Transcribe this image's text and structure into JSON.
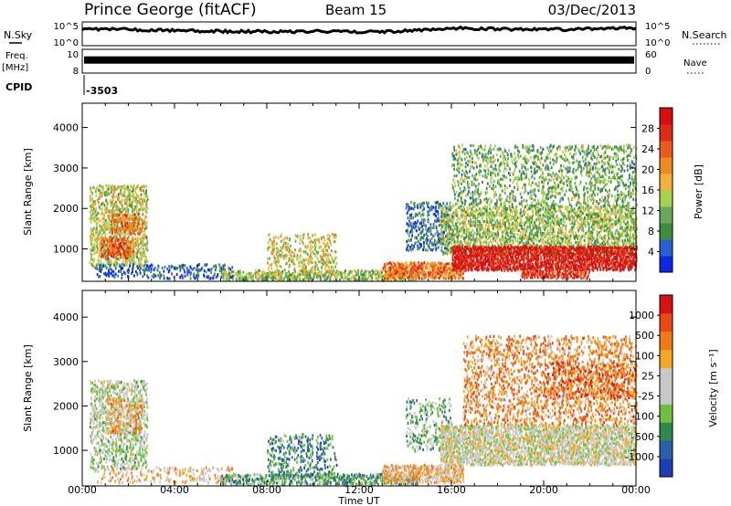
{
  "header": {
    "station": "Prince George (fitACF)",
    "beam": "Beam 15",
    "date": "03/Dec/2013"
  },
  "chart_data": [
    {
      "type": "line",
      "panel": "noise",
      "left_label": "N.Sky",
      "right_label": "N.Search",
      "left_ticks": [
        "10^5",
        "10^0"
      ],
      "right_ticks": [
        "10^5",
        "10^0"
      ],
      "x_hours": [
        0,
        1,
        2,
        3,
        4,
        5,
        6,
        7,
        8,
        9,
        10,
        11,
        12,
        13,
        14,
        15,
        16,
        17,
        18,
        19,
        20,
        21,
        22,
        23,
        24
      ],
      "n_sky_level": [
        0.72,
        0.7,
        0.68,
        0.66,
        0.64,
        0.62,
        0.6,
        0.6,
        0.6,
        0.6,
        0.61,
        0.6,
        0.58,
        0.6,
        0.62,
        0.68,
        0.74,
        0.72,
        0.7,
        0.7,
        0.68,
        0.68,
        0.7,
        0.72,
        0.74
      ]
    },
    {
      "type": "line",
      "panel": "frequency",
      "left_label": "Freq.",
      "left_unit": "[MHz]",
      "left_ticks": [
        "10",
        "8"
      ],
      "right_label": "Nave",
      "right_ticks": [
        "60",
        "0"
      ],
      "cpid_label": "CPID",
      "cpid_value": "-3503",
      "frequency_level": 0.55
    },
    {
      "type": "heatmap",
      "panel": "power",
      "ylabel": "Slant Range [km]",
      "yticks": [
        1000,
        2000,
        3000,
        4000
      ],
      "ylim": [
        200,
        4600
      ],
      "colorbar_label": "Power [dB]",
      "colorbar_ticks": [
        4,
        8,
        12,
        16,
        20,
        24,
        28
      ],
      "colorbar_colors": [
        "#0a28e6",
        "#2a5fd2",
        "#3f8c3a",
        "#6aa85e",
        "#a7d24d",
        "#f2b13a",
        "#f08a1e",
        "#ea5a1a",
        "#e02a14",
        "#d80f0f"
      ],
      "regions": [
        {
          "t0": 0.3,
          "t1": 2.8,
          "r0": 600,
          "r1": 2600,
          "density": 0.55,
          "level": 0.45
        },
        {
          "t0": 0.8,
          "t1": 2.2,
          "r0": 800,
          "r1": 1300,
          "density": 0.6,
          "level": 0.75
        },
        {
          "t0": 1.2,
          "t1": 2.6,
          "r0": 1400,
          "r1": 1900,
          "density": 0.5,
          "level": 0.7
        },
        {
          "t0": 0.5,
          "t1": 6.5,
          "r0": 300,
          "r1": 650,
          "density": 0.35,
          "level": 0.15
        },
        {
          "t0": 6.0,
          "t1": 14.5,
          "r0": 250,
          "r1": 500,
          "density": 0.6,
          "level": 0.4
        },
        {
          "t0": 8.0,
          "t1": 11.0,
          "r0": 400,
          "r1": 1400,
          "density": 0.35,
          "level": 0.5
        },
        {
          "t0": 13.0,
          "t1": 16.5,
          "r0": 300,
          "r1": 700,
          "density": 0.8,
          "level": 0.7
        },
        {
          "t0": 14.0,
          "t1": 16.0,
          "r0": 1000,
          "r1": 2200,
          "density": 0.35,
          "level": 0.2
        },
        {
          "t0": 15.5,
          "t1": 24.0,
          "r0": 900,
          "r1": 2100,
          "density": 0.55,
          "level": 0.4
        },
        {
          "t0": 16.0,
          "t1": 24.0,
          "r0": 500,
          "r1": 1100,
          "density": 0.85,
          "level": 0.95
        },
        {
          "t0": 16.0,
          "t1": 24.0,
          "r0": 2100,
          "r1": 3600,
          "density": 0.3,
          "level": 0.35
        },
        {
          "t0": 19.0,
          "t1": 22.0,
          "r0": 300,
          "r1": 500,
          "density": 0.8,
          "level": 0.85
        }
      ]
    },
    {
      "type": "heatmap",
      "panel": "velocity",
      "ylabel": "Slant Range [km]",
      "yticks": [
        1000,
        2000,
        3000,
        4000
      ],
      "ylim": [
        200,
        4600
      ],
      "colorbar_label": "Velocity [m s⁻¹]",
      "colorbar_ticks": [
        1000,
        500,
        100,
        25,
        -25,
        -100,
        -500,
        -1000
      ],
      "colorbar_colors": [
        "#1e3cb4",
        "#2a5faa",
        "#2e8a4a",
        "#6fbf3c",
        "#c8c8c8",
        "#c8c8c8",
        "#f5a623",
        "#f07a1a",
        "#e84a14",
        "#d81212"
      ],
      "regions": [
        {
          "t0": 0.3,
          "t1": 2.8,
          "r0": 600,
          "r1": 2600,
          "density": 0.5,
          "level": 0.45
        },
        {
          "t0": 1.0,
          "t1": 2.6,
          "r0": 1400,
          "r1": 2200,
          "density": 0.4,
          "level": 0.65
        },
        {
          "t0": 0.5,
          "t1": 6.5,
          "r0": 300,
          "r1": 650,
          "density": 0.3,
          "level": 0.6
        },
        {
          "t0": 6.0,
          "t1": 14.5,
          "r0": 250,
          "r1": 500,
          "density": 0.6,
          "level": 0.3
        },
        {
          "t0": 8.0,
          "t1": 11.0,
          "r0": 400,
          "r1": 1400,
          "density": 0.3,
          "level": 0.25
        },
        {
          "t0": 13.0,
          "t1": 16.5,
          "r0": 300,
          "r1": 700,
          "density": 0.8,
          "level": 0.62
        },
        {
          "t0": 14.0,
          "t1": 16.0,
          "r0": 1000,
          "r1": 2200,
          "density": 0.3,
          "level": 0.35
        },
        {
          "t0": 15.5,
          "t1": 24.0,
          "r0": 700,
          "r1": 1600,
          "density": 0.8,
          "level": 0.5
        },
        {
          "t0": 16.5,
          "t1": 24.0,
          "r0": 1600,
          "r1": 3600,
          "density": 0.35,
          "level": 0.72
        },
        {
          "t0": 20.0,
          "t1": 24.0,
          "r0": 2200,
          "r1": 3000,
          "density": 0.3,
          "level": 0.8
        }
      ]
    }
  ],
  "xaxis": {
    "ticks": [
      "00:00",
      "04:00",
      "08:00",
      "12:00",
      "16:00",
      "20:00",
      "00:00"
    ],
    "label": "Time UT",
    "range_hours": [
      0,
      24
    ]
  }
}
